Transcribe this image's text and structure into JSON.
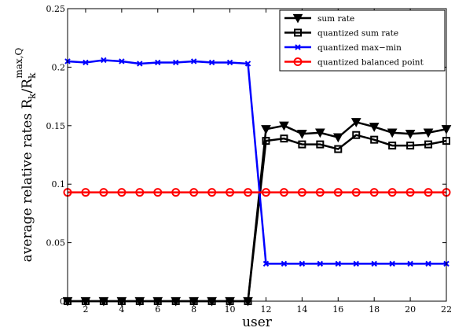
{
  "chart_data": {
    "type": "line",
    "xlabel": "user",
    "ylabel": {
      "base": "average relative rates R",
      "sub1": "k",
      "slash": "/R",
      "sub2": "k",
      "sup": "max,Q"
    },
    "xlim": [
      1,
      22
    ],
    "ylim": [
      0,
      0.25
    ],
    "xticks": [
      2,
      4,
      6,
      8,
      10,
      12,
      14,
      16,
      18,
      20,
      22
    ],
    "yticks": [
      0,
      0.05,
      0.1,
      0.15,
      0.2,
      0.25
    ],
    "ytick_labels": [
      "0",
      "0.05",
      "0.1",
      "0.15",
      "0.2",
      "0.25"
    ],
    "grid": false,
    "legend_position": "top-right",
    "x": [
      1,
      2,
      3,
      4,
      5,
      6,
      7,
      8,
      9,
      10,
      11,
      12,
      13,
      14,
      15,
      16,
      17,
      18,
      19,
      20,
      21,
      22
    ],
    "series": [
      {
        "name": "sum rate",
        "color": "#000000",
        "marker": "triangle-down",
        "values": [
          0,
          0,
          0,
          0,
          0,
          0,
          0,
          0,
          0,
          0,
          0,
          0.147,
          0.15,
          0.143,
          0.144,
          0.14,
          0.153,
          0.149,
          0.144,
          0.143,
          0.144,
          0.147
        ]
      },
      {
        "name": "quantized sum rate",
        "color": "#000000",
        "marker": "square",
        "values": [
          0,
          0,
          0,
          0,
          0,
          0,
          0,
          0,
          0,
          0,
          0,
          0.137,
          0.139,
          0.134,
          0.134,
          0.13,
          0.142,
          0.138,
          0.133,
          0.133,
          0.134,
          0.137
        ]
      },
      {
        "name": "quantized max−min",
        "color": "#0000ff",
        "marker": "x",
        "values": [
          0.205,
          0.204,
          0.206,
          0.205,
          0.203,
          0.204,
          0.204,
          0.205,
          0.204,
          0.204,
          0.203,
          0.032,
          0.032,
          0.032,
          0.032,
          0.032,
          0.032,
          0.032,
          0.032,
          0.032,
          0.032,
          0.032
        ]
      },
      {
        "name": "quantized balanced point",
        "color": "#ff0000",
        "marker": "circle",
        "values": [
          0.093,
          0.093,
          0.093,
          0.093,
          0.093,
          0.093,
          0.093,
          0.093,
          0.093,
          0.093,
          0.093,
          0.093,
          0.093,
          0.093,
          0.093,
          0.093,
          0.093,
          0.093,
          0.093,
          0.093,
          0.093,
          0.093
        ]
      }
    ]
  }
}
